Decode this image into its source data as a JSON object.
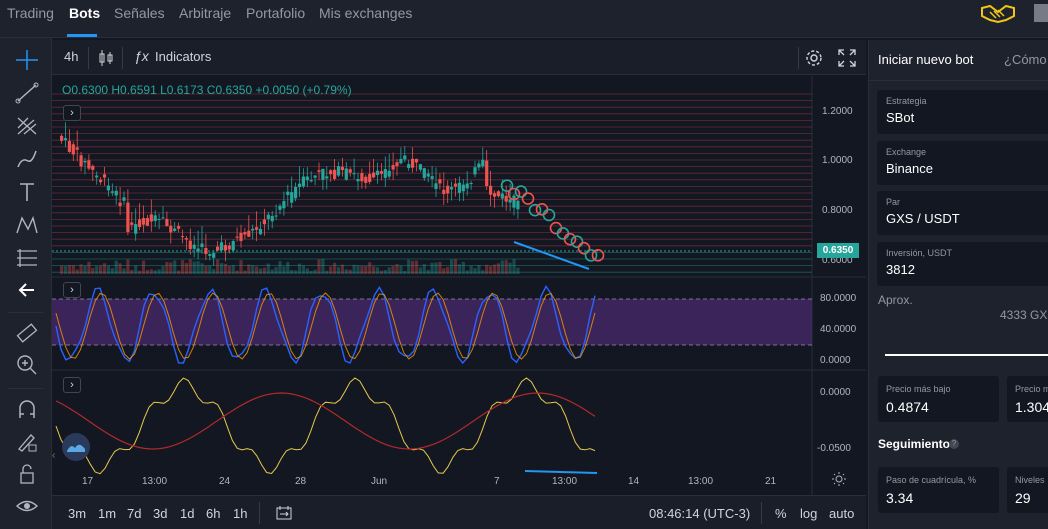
{
  "nav": {
    "items": [
      "Trading",
      "Bots",
      "Señales",
      "Arbitraje",
      "Portafolio",
      "Mis exchanges"
    ],
    "active": "Bots"
  },
  "chart_toolbar": {
    "timeframe": "4h",
    "indicators_label": "Indicators"
  },
  "ohlc": "O0.6300  H0.6591  L0.6173  C0.6350  +0.0050 (+0.79%)",
  "price_axis": [
    "1.2000",
    "1.0000",
    "0.8000",
    "0.6000"
  ],
  "current_price": "0.6350",
  "stoch_axis": [
    "80.0000",
    "40.0000",
    "0.0000"
  ],
  "macd_axis": [
    "0.0000",
    "-0.0500"
  ],
  "time_axis": [
    "17",
    "13:00",
    "24",
    "28",
    "Jun",
    "7",
    "13:00",
    "14",
    "13:00",
    "21"
  ],
  "bottom_bar": {
    "ranges": [
      "3m",
      "1m",
      "7d",
      "3d",
      "1d",
      "6h",
      "1h"
    ],
    "clock": "08:46:14 (UTC-3)",
    "percent": "%",
    "log": "log",
    "auto": "auto"
  },
  "right_panel": {
    "tab_active": "Iniciar nuevo bot",
    "tab_other": "¿Cómo",
    "fields": [
      {
        "label": "Estrategia",
        "value": "SBot"
      },
      {
        "label": "Exchange",
        "value": "Binance"
      },
      {
        "label": "Par",
        "value": "GXS / USDT"
      },
      {
        "label": "Inversión, USDT",
        "value": "3812"
      }
    ],
    "aprox_label": "Aprox.",
    "aprox_value": "4333 GX",
    "precio_bajo_label": "Precio más bajo",
    "precio_bajo_value": "0.4874",
    "precio_alto_label": "Precio m",
    "precio_alto_value": "1.304",
    "seguimiento": "Seguimiento",
    "paso_label": "Paso de cuadrícula, %",
    "paso_value": "3.34",
    "niveles_label": "Niveles",
    "niveles_value": "29"
  },
  "colors": {
    "up": "#26a69a",
    "down": "#ef5350",
    "accent": "#2196f3",
    "stoch_band": "#4a2a6e"
  }
}
